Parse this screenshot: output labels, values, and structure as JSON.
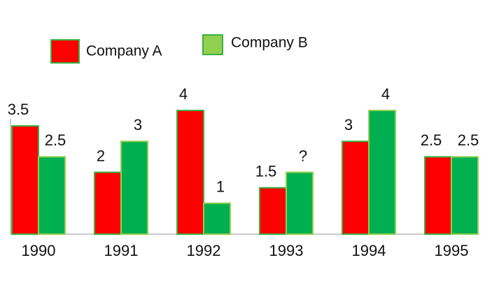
{
  "chart_data": {
    "type": "bar",
    "categories": [
      "1990",
      "1991",
      "1992",
      "1993",
      "1994",
      "1995"
    ],
    "series": [
      {
        "name": "Company A",
        "color": "#ff0000",
        "values": [
          3.5,
          2,
          4,
          1.5,
          3,
          2.5
        ]
      },
      {
        "name": "Company B",
        "color": "#00b050",
        "values": [
          2.5,
          3,
          1,
          2,
          4,
          2.5
        ],
        "value_labels": [
          "2.5",
          "3",
          "1",
          "?",
          "4",
          "2.5"
        ]
      }
    ]
  }
}
